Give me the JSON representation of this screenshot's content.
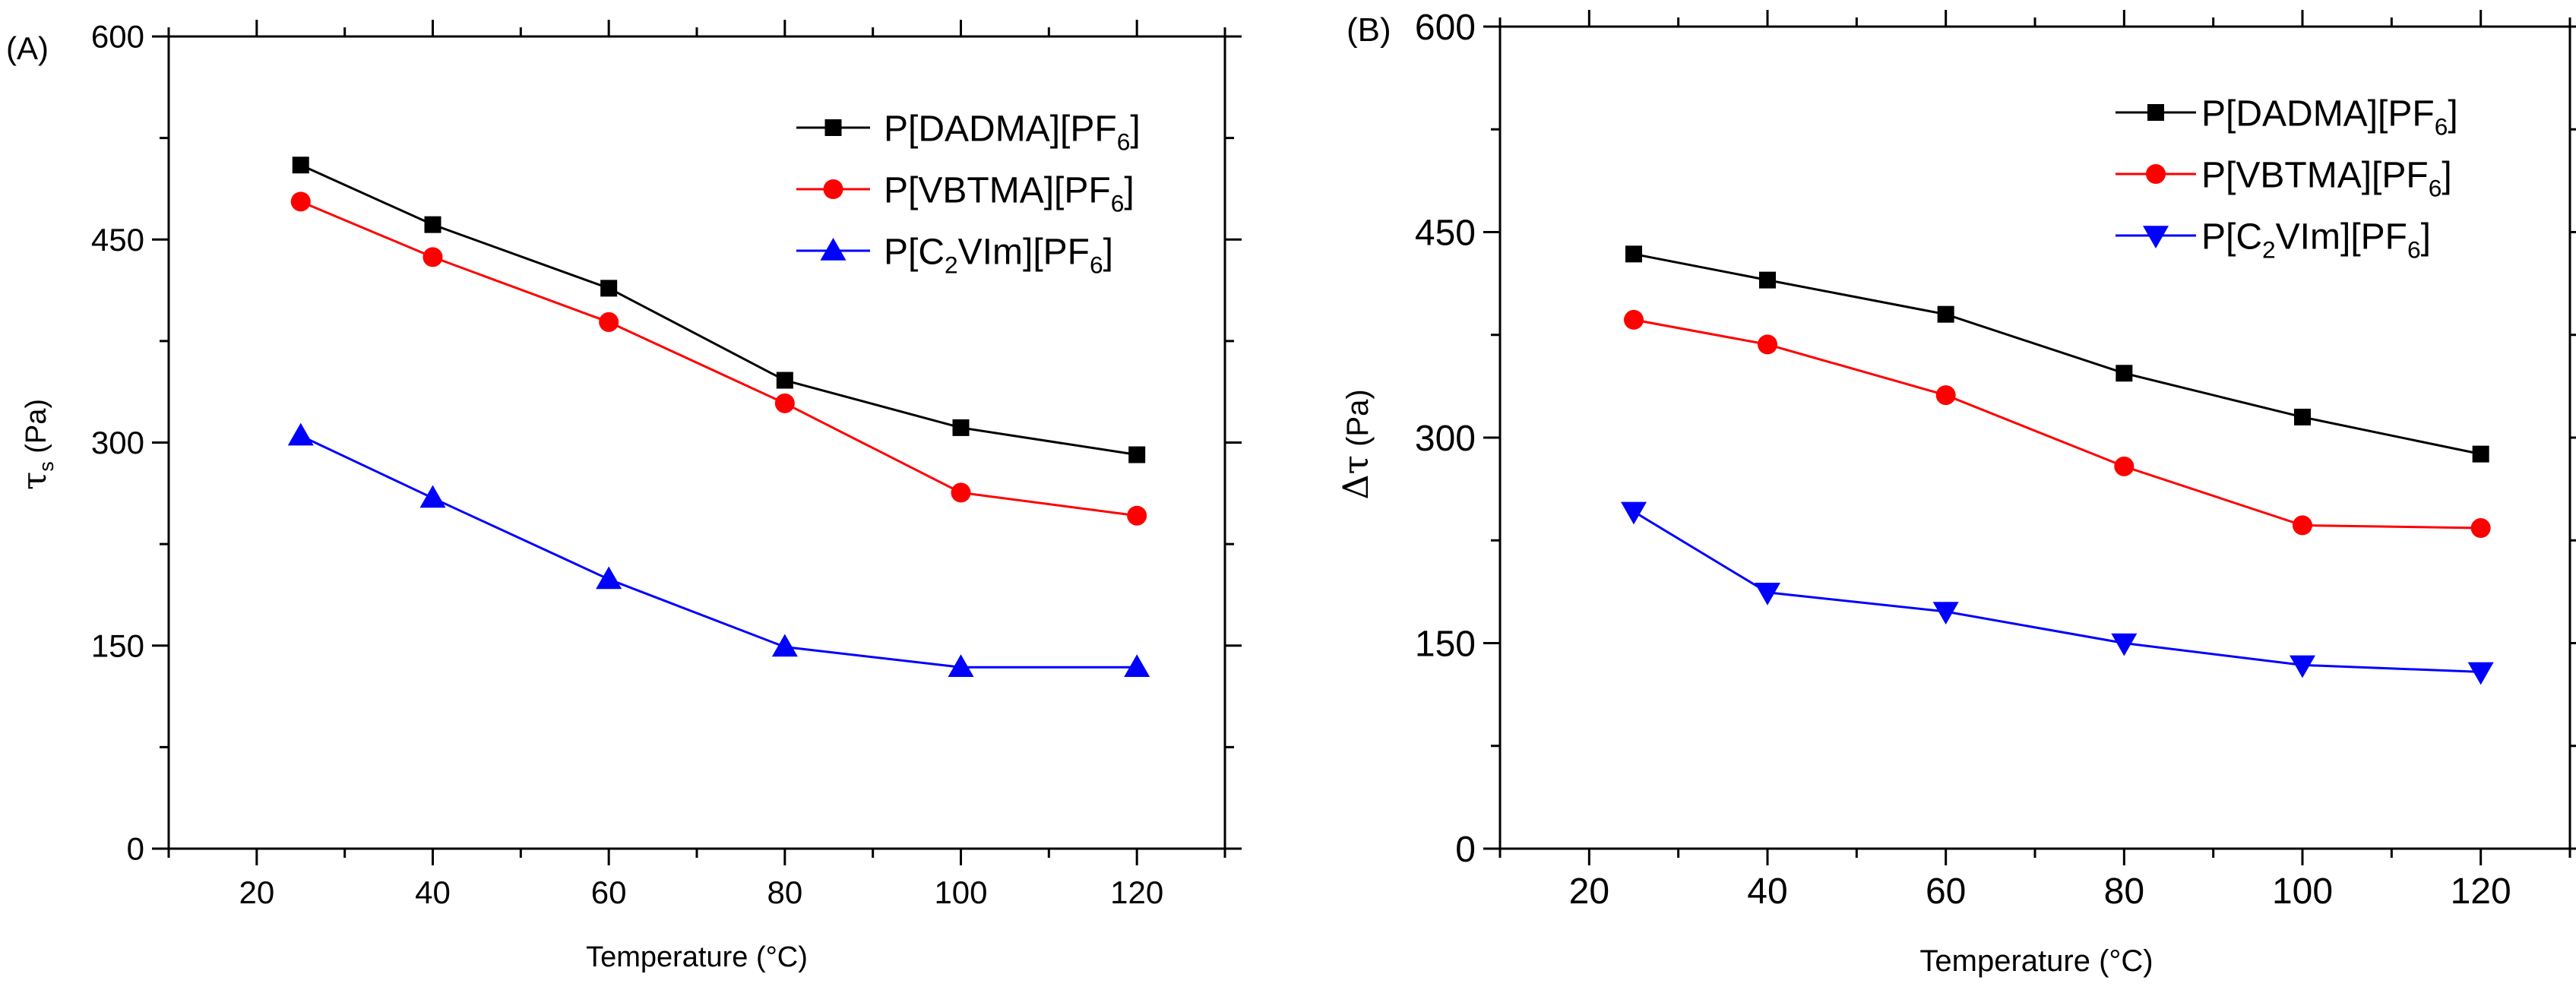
{
  "chart_data": [
    {
      "type": "line",
      "panel_label": "(A)",
      "xlabel": "Temperature (°C)",
      "ylabel_symbol": "τ",
      "ylabel_sub": "s",
      "ylabel_unit": " (Pa)",
      "xlim": [
        10,
        130
      ],
      "ylim": [
        0,
        600
      ],
      "xticks": [
        20,
        40,
        60,
        80,
        100,
        120
      ],
      "xtick_labels": [
        "20",
        "40",
        "60",
        "80",
        "100",
        "120"
      ],
      "yticks": [
        0,
        150,
        300,
        450,
        600
      ],
      "ytick_labels": [
        "0",
        "150",
        "300",
        "450",
        "600"
      ],
      "x": [
        25,
        40,
        60,
        80,
        100,
        120
      ],
      "legend_position": "top-right",
      "series": [
        {
          "name": "P[DADMA][PF6]",
          "label_main": "P[DADMA][PF",
          "label_sub": "6",
          "label_end": "]",
          "color": "#000000",
          "marker": "square",
          "values": [
            505,
            461,
            414,
            346,
            311,
            291
          ]
        },
        {
          "name": "P[VBTMA][PF6]",
          "label_main": "P[VBTMA][PF",
          "label_sub": "6",
          "label_end": "]",
          "color": "#ff0000",
          "marker": "circle",
          "values": [
            478,
            437,
            389,
            329,
            263,
            246
          ]
        },
        {
          "name": "P[C2VIm][PF6]",
          "label_main": "P[C",
          "label_sub": "2",
          "label_mid": "VIm][PF",
          "label_sub2": "6",
          "label_end": "]",
          "color": "#0000ff",
          "marker": "triangle-up",
          "values": [
            305,
            259,
            199,
            149,
            134,
            134
          ]
        }
      ]
    },
    {
      "type": "line",
      "panel_label": "(B)",
      "xlabel": "Temperature (°C)",
      "ylabel_symbol": "Δτ",
      "ylabel_sub": "",
      "ylabel_unit": " (Pa)",
      "xlim": [
        10,
        130
      ],
      "ylim": [
        0,
        600
      ],
      "xticks": [
        20,
        40,
        60,
        80,
        100,
        120
      ],
      "xtick_labels": [
        "20",
        "40",
        "60",
        "80",
        "100",
        "120"
      ],
      "yticks": [
        0,
        150,
        300,
        450,
        600
      ],
      "ytick_labels": [
        "0",
        "150",
        "300",
        "450",
        "600"
      ],
      "x": [
        25,
        40,
        60,
        80,
        100,
        120
      ],
      "legend_position": "top-right",
      "series": [
        {
          "name": "P[DADMA][PF6]",
          "label_main": "P[DADMA][PF",
          "label_sub": "6",
          "label_end": "]",
          "color": "#000000",
          "marker": "square",
          "values": [
            434,
            415,
            390,
            347,
            315,
            288
          ]
        },
        {
          "name": "P[VBTMA][PF6]",
          "label_main": "P[VBTMA][PF",
          "label_sub": "6",
          "label_end": "]",
          "color": "#ff0000",
          "marker": "circle",
          "values": [
            386,
            368,
            331,
            279,
            236,
            234
          ]
        },
        {
          "name": "P[C2VIm][PF6]",
          "label_main": "P[C",
          "label_sub": "2",
          "label_mid": "VIm][PF",
          "label_sub2": "6",
          "label_end": "]",
          "color": "#0000ff",
          "marker": "triangle-down",
          "values": [
            246,
            187,
            173,
            150,
            134,
            129
          ]
        }
      ]
    }
  ]
}
